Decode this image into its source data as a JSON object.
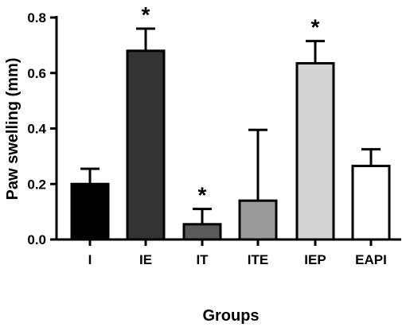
{
  "chart_data": {
    "type": "bar",
    "title": "",
    "xlabel": "Groups",
    "ylabel": "Paw swelling (mm)",
    "ylim": [
      0,
      0.8
    ],
    "yticks": [
      "0.0",
      "0.2",
      "0.4",
      "0.6",
      "0.8"
    ],
    "categories": [
      "I",
      "IE",
      "IT",
      "ITE",
      "IEP",
      "EAPI"
    ],
    "values": [
      0.2,
      0.68,
      0.055,
      0.14,
      0.635,
      0.265
    ],
    "error_upper": [
      0.255,
      0.76,
      0.11,
      0.395,
      0.715,
      0.325
    ],
    "significance": [
      "",
      "*",
      "*",
      "",
      "*",
      ""
    ],
    "bar_colors": [
      "#000000",
      "#333333",
      "#5a5a5a",
      "#9a9a9a",
      "#d3d3d3",
      "#ffffff"
    ],
    "grid": false,
    "legend": "none"
  }
}
